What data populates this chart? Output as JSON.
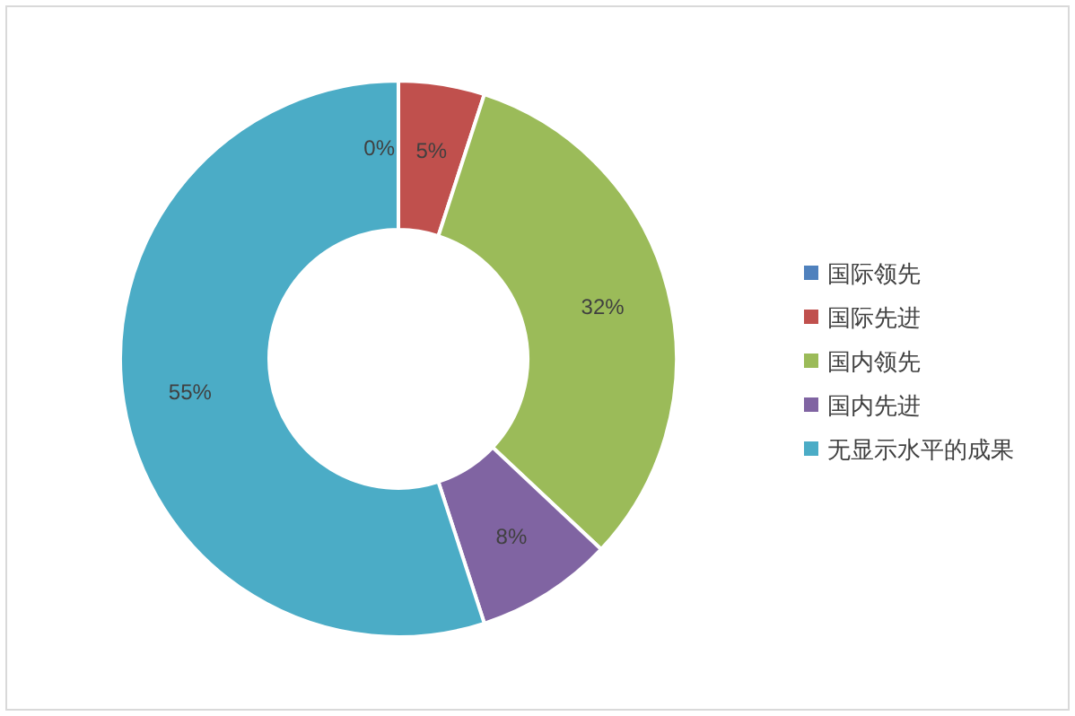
{
  "chart_data": {
    "type": "donut",
    "categories": [
      "国际领先",
      "国际先进",
      "国内领先",
      "国内先进",
      "无显示水平的成果"
    ],
    "values": [
      0,
      5,
      32,
      8,
      55
    ],
    "colors": [
      "#4f81bd",
      "#c0504d",
      "#9bbb59",
      "#8064a2",
      "#4bacc6"
    ],
    "value_labels": [
      "0%",
      "5%",
      "32%",
      "8%",
      "55%"
    ],
    "legend": "right"
  }
}
